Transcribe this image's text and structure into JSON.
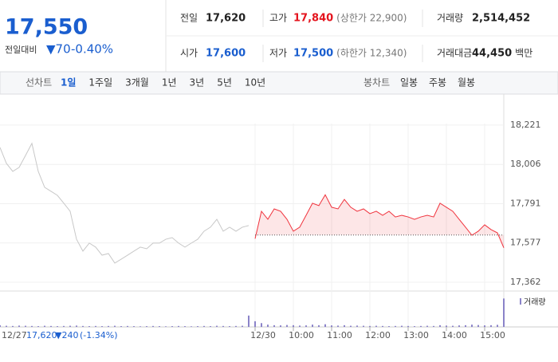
{
  "header": {
    "price": "17,550",
    "change_label": "전일대비",
    "change": "▼70",
    "change_pct": "-0.40%",
    "stats": [
      {
        "label": "전일",
        "value": "17,620",
        "color": "#222222"
      },
      {
        "label": "고가",
        "value": "17,840",
        "note": "(상한가 22,900)",
        "color": "#e4141e"
      },
      {
        "label": "거래량",
        "value": "2,514,452",
        "color": "#222222"
      },
      {
        "label": "시가",
        "value": "17,600",
        "color": "#1a5ecf"
      },
      {
        "label": "저가",
        "value": "17,500",
        "note": "(하한가 12,340)",
        "color": "#1a5ecf"
      },
      {
        "label": "거래대금",
        "value": "44,450",
        "unit": "백만",
        "color": "#222222"
      }
    ]
  },
  "tabs": {
    "line_label": "선차트",
    "periods": [
      "1일",
      "1주일",
      "3개월",
      "1년",
      "3년",
      "5년",
      "10년"
    ],
    "active": 0,
    "candle_label": "봉차트",
    "candles": [
      "일봉",
      "주봉",
      "월봉"
    ]
  },
  "chart_data": {
    "type": "line",
    "baseline": 17620,
    "x": [
      0,
      1,
      2,
      3,
      4,
      5,
      6,
      7,
      8,
      9,
      10,
      11,
      12,
      13,
      14,
      15,
      16,
      17,
      18,
      19,
      20,
      21,
      22,
      23,
      24,
      25,
      26,
      27,
      28,
      29,
      30,
      31,
      32,
      33,
      34,
      35,
      36,
      37,
      38,
      39,
      40,
      41,
      42,
      43,
      44,
      45,
      46,
      47,
      48,
      49,
      50,
      51,
      52,
      53,
      54,
      55,
      56,
      57,
      58,
      59,
      60,
      61,
      62,
      63,
      64,
      65,
      66,
      67,
      68,
      69,
      70,
      71,
      72,
      73,
      74,
      75,
      76,
      77,
      78,
      79
    ],
    "xlim": [
      0,
      79
    ],
    "xticks": [
      {
        "value": 40,
        "label": "12/30"
      },
      {
        "value": 46,
        "label": "10:00"
      },
      {
        "value": 52,
        "label": "11:00"
      },
      {
        "value": 58,
        "label": "12:00"
      },
      {
        "value": 64,
        "label": "13:00"
      },
      {
        "value": 70,
        "label": "14:00"
      },
      {
        "value": 76,
        "label": "15:00"
      }
    ],
    "ylim": [
      17314,
      18360
    ],
    "yticks": [
      {
        "value": 18221,
        "label": "18,221"
      },
      {
        "value": 18006,
        "label": "18,006"
      },
      {
        "value": 17791,
        "label": "17,791"
      },
      {
        "value": 17577,
        "label": "17,577"
      },
      {
        "value": 17362,
        "label": "17,362"
      }
    ],
    "grid": true,
    "series": [
      {
        "color": "#c8c8c8",
        "values": [
          18099,
          18012,
          17968,
          17990,
          18055,
          18121,
          17968,
          17881,
          17859,
          17837,
          17794,
          17750,
          17597,
          17532,
          17576,
          17554,
          17510,
          17519,
          17467,
          17488,
          17510,
          17532,
          17554,
          17545,
          17576,
          17576,
          17597,
          17606,
          17576,
          17554,
          17576,
          17597,
          17641,
          17663,
          17706,
          17641,
          17663,
          17641,
          17663,
          17672,
          null,
          null,
          null,
          null,
          null,
          null,
          null,
          null,
          null,
          null,
          null,
          null,
          null,
          null,
          null,
          null,
          null,
          null,
          null,
          null,
          null,
          null,
          null,
          null,
          null,
          null,
          null,
          null,
          null,
          null,
          null,
          null,
          null,
          null,
          null,
          null,
          null,
          null,
          null,
          null
        ]
      },
      {
        "color": "#f0323c",
        "values": [
          null,
          null,
          null,
          null,
          null,
          null,
          null,
          null,
          null,
          null,
          null,
          null,
          null,
          null,
          null,
          null,
          null,
          null,
          null,
          null,
          null,
          null,
          null,
          null,
          null,
          null,
          null,
          null,
          null,
          null,
          null,
          null,
          null,
          null,
          null,
          null,
          null,
          null,
          null,
          null,
          17600,
          17750,
          17706,
          17763,
          17750,
          17706,
          17641,
          17663,
          17728,
          17794,
          17781,
          17840,
          17772,
          17763,
          17815,
          17772,
          17750,
          17763,
          17737,
          17750,
          17728,
          17750,
          17719,
          17728,
          17719,
          17706,
          17719,
          17728,
          17719,
          17794,
          17772,
          17750,
          17706,
          17663,
          17619,
          17641,
          17676,
          17650,
          17632,
          17550
        ]
      }
    ],
    "volume": {
      "name": "거래량",
      "color": "#8b83c9",
      "lim": [
        0,
        160000
      ],
      "values": [
        9000,
        6000,
        5000,
        7000,
        6000,
        5000,
        4000,
        6000,
        5000,
        4000,
        5000,
        6000,
        7000,
        5000,
        4000,
        5000,
        4000,
        5000,
        6000,
        4000,
        5000,
        4000,
        3000,
        4000,
        5000,
        4000,
        3000,
        4000,
        5000,
        4000,
        3000,
        4000,
        5000,
        4000,
        6000,
        5000,
        4000,
        5000,
        6000,
        60000,
        30000,
        20000,
        12000,
        9000,
        8000,
        10000,
        9000,
        7000,
        8000,
        12000,
        9000,
        14000,
        8000,
        7000,
        9000,
        6000,
        7000,
        6000,
        5000,
        6000,
        5000,
        4000,
        5000,
        6000,
        5000,
        4000,
        5000,
        6000,
        5000,
        9000,
        7000,
        6000,
        8000,
        9000,
        12000,
        10000,
        8000,
        9000,
        11000,
        150000
      ]
    },
    "prev_date": "12/27",
    "prev_close": "17,620",
    "prev_change": "▼240",
    "prev_change_pct": "(-1.34%)"
  }
}
